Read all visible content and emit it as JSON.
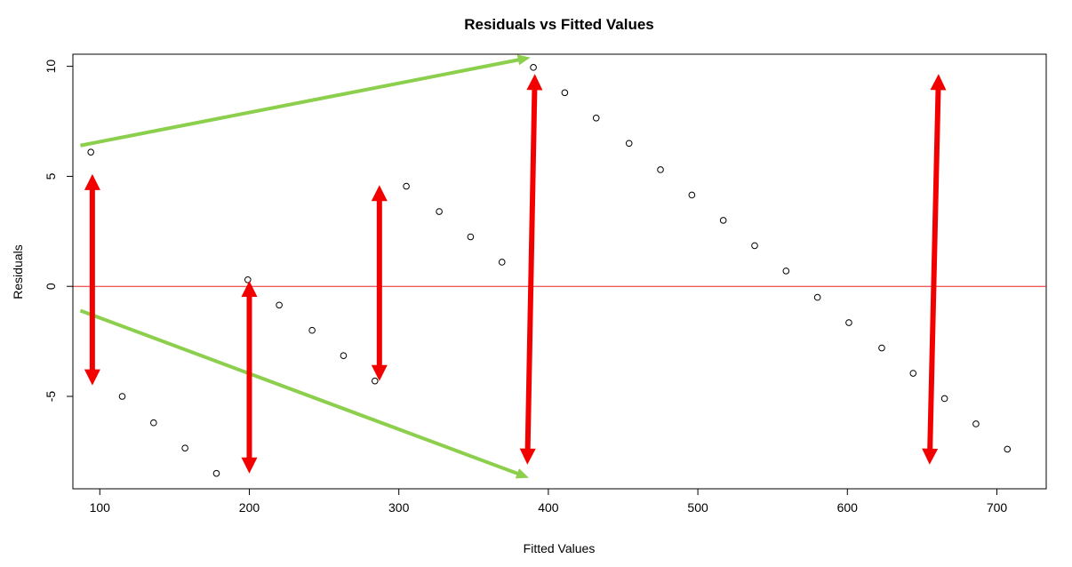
{
  "chart_data": {
    "type": "scatter",
    "title": "Residuals vs Fitted Values",
    "xlabel": "Fitted Values",
    "ylabel": "Residuals",
    "xlim": [
      82,
      733
    ],
    "ylim": [
      -9.2,
      10.55
    ],
    "xticks": [
      100,
      200,
      300,
      400,
      500,
      600,
      700
    ],
    "xtick_labels": [
      "100",
      "200",
      "300",
      "400",
      "500",
      "600",
      "700"
    ],
    "yticks": [
      -5,
      0,
      5,
      10
    ],
    "ytick_labels": [
      "-5",
      "0",
      "5",
      "10"
    ],
    "grid": false,
    "points": {
      "x": [
        94,
        115,
        136,
        157,
        178,
        199,
        220,
        242,
        263,
        284,
        305,
        327,
        348,
        369,
        390,
        411,
        432,
        454,
        475,
        496,
        517,
        538,
        559,
        580,
        601,
        623,
        644,
        665,
        686,
        707
      ],
      "y": [
        6.1,
        -5.0,
        -6.2,
        -7.35,
        -8.5,
        0.3,
        -0.85,
        -2.0,
        -3.15,
        -4.3,
        4.55,
        3.4,
        2.25,
        1.1,
        9.95,
        8.8,
        7.65,
        6.5,
        5.3,
        4.15,
        3.0,
        1.85,
        0.7,
        -0.5,
        -1.65,
        -2.8,
        -3.95,
        -5.1,
        -6.25,
        -7.4
      ]
    },
    "hlines": [
      {
        "y": 0,
        "color": "#ee2222"
      }
    ],
    "annotations": {
      "green_arrows": [
        {
          "from": [
            87,
            6.4
          ],
          "to": [
            388,
            10.4
          ]
        },
        {
          "from": [
            87,
            -1.1
          ],
          "to": [
            387,
            -8.7
          ]
        }
      ],
      "red_double_arrows": [
        {
          "x1": 95,
          "y1": 5.1,
          "x2": 95,
          "y2": -4.5
        },
        {
          "x1": 200,
          "y1": 0.25,
          "x2": 200,
          "y2": -8.5
        },
        {
          "x1": 287,
          "y1": 4.6,
          "x2": 287,
          "y2": -4.3
        },
        {
          "x1": 391,
          "y1": 9.65,
          "x2": 386,
          "y2": -8.1
        },
        {
          "x1": 661,
          "y1": 9.65,
          "x2": 655,
          "y2": -8.1
        }
      ]
    },
    "colors": {
      "points": "#000000",
      "zero_line": "#ee2222",
      "green_arrow": "#8ccf4d",
      "red_arrow": "#f20000"
    }
  }
}
